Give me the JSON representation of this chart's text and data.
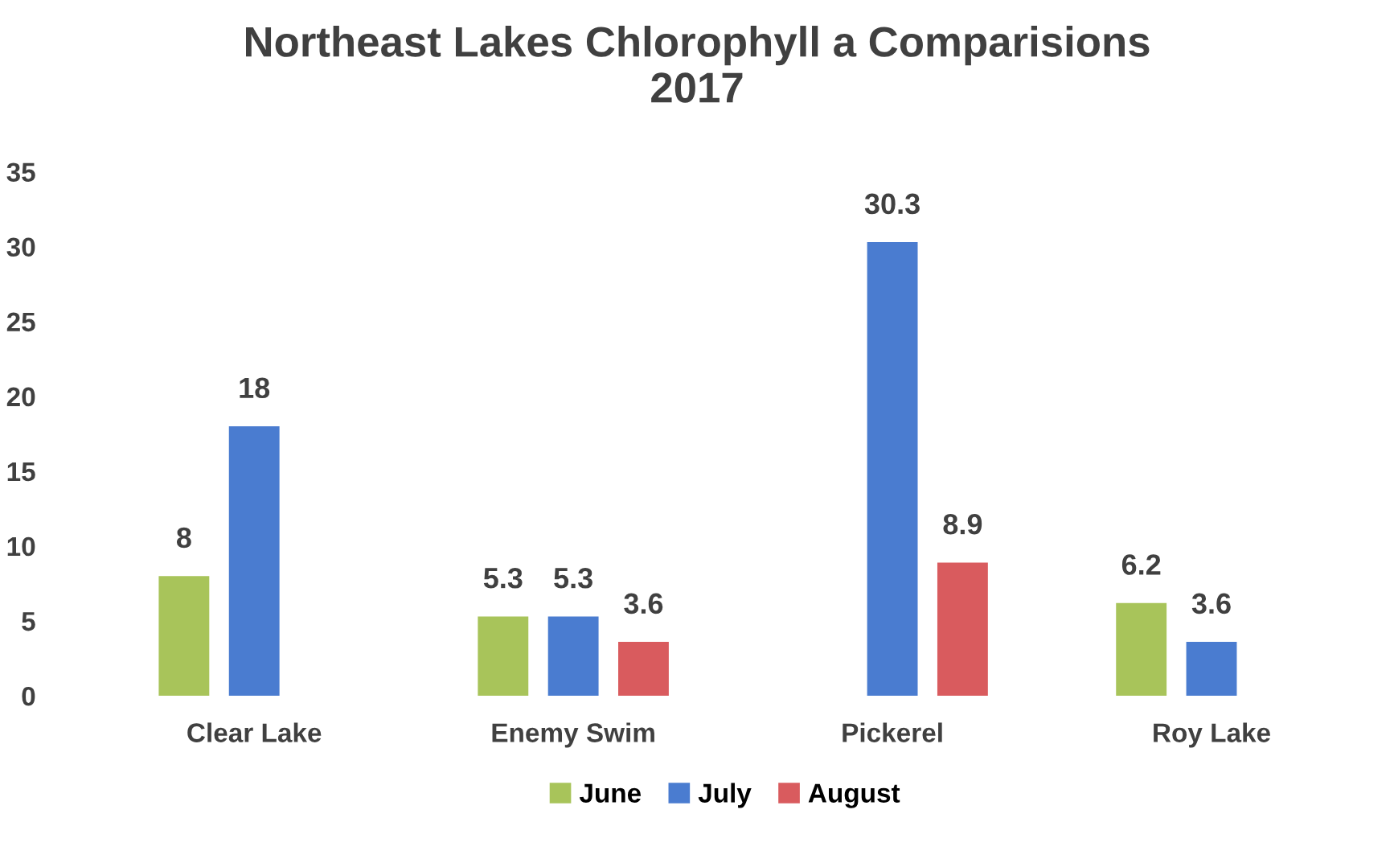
{
  "chart_data": {
    "type": "bar",
    "title": "Northeast Lakes Chlorophyll a Comparisions\n2017",
    "categories": [
      "Clear Lake",
      "Enemy Swim",
      "Pickerel",
      "Roy Lake"
    ],
    "series": [
      {
        "name": "June",
        "color": "#a8c45a",
        "values": [
          8,
          5.3,
          null,
          6.2
        ]
      },
      {
        "name": "July",
        "color": "#4a7cd0",
        "values": [
          18,
          5.3,
          30.3,
          3.6
        ]
      },
      {
        "name": "August",
        "color": "#d95b5e",
        "values": [
          null,
          3.6,
          8.9,
          null
        ]
      }
    ],
    "ylim": [
      0,
      35
    ],
    "yticks": [
      0,
      5,
      10,
      15,
      20,
      25,
      30,
      35
    ],
    "data_labels": true,
    "grid": false,
    "legend": "bottom"
  }
}
